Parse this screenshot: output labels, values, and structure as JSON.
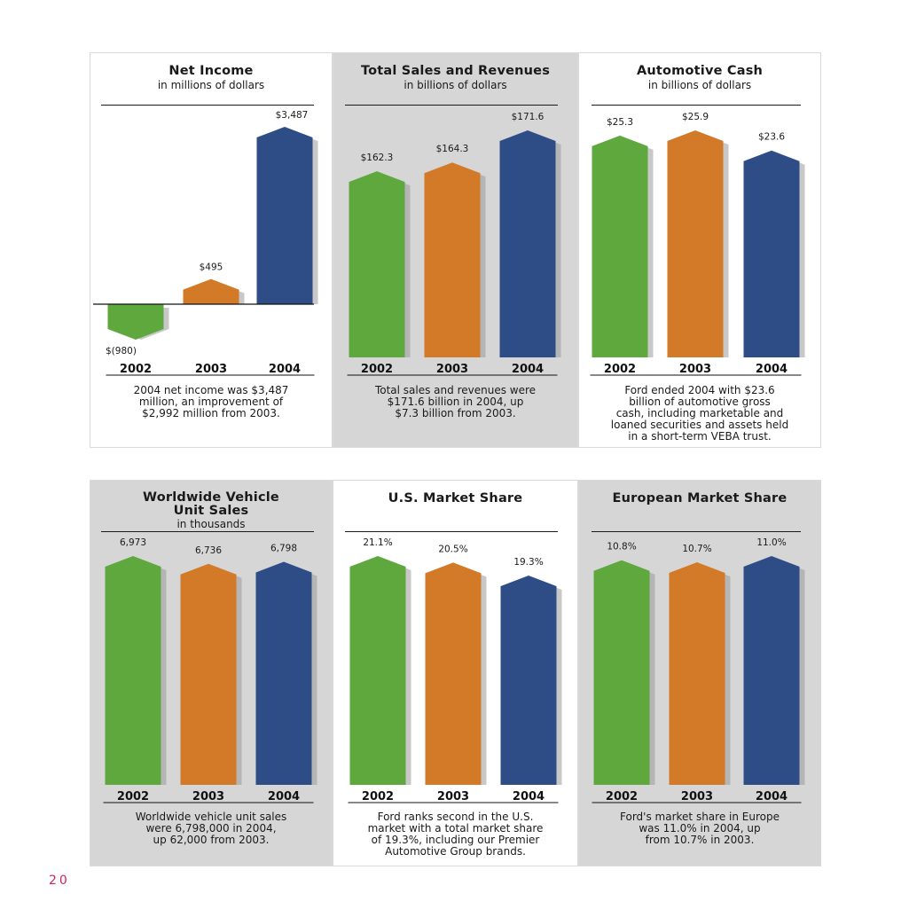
{
  "colors": {
    "green": "#5ea83e",
    "orange": "#d27a28",
    "blue": "#2e4d87",
    "shadow": "#9a9a9a"
  },
  "page_number": "20",
  "panels": [
    {
      "id": "net-income",
      "title": [
        "Net Income"
      ],
      "subtitle": "in millions of dollars",
      "desc": [
        "2004 net income was $3,487",
        "million, an improvement of",
        "$2,992 million from 2003."
      ]
    },
    {
      "id": "total-sales",
      "title": [
        "Total Sales and Revenues"
      ],
      "subtitle": "in billions of dollars",
      "desc": [
        "Total sales and revenues were",
        "$171.6 billion in 2004, up",
        "$7.3 billion from 2003."
      ]
    },
    {
      "id": "automotive-cash",
      "title": [
        "Automotive Cash"
      ],
      "subtitle": "in billions of dollars",
      "desc": [
        "Ford ended 2004 with $23.6",
        "billion of automotive gross",
        "cash, including marketable and",
        "loaned securities and assets held",
        "in a short-term VEBA trust."
      ]
    },
    {
      "id": "unit-sales",
      "title": [
        "Worldwide Vehicle",
        "Unit Sales"
      ],
      "subtitle": "in thousands",
      "desc": [
        "Worldwide vehicle unit sales",
        "were 6,798,000 in 2004,",
        "up 62,000 from 2003."
      ]
    },
    {
      "id": "us-share",
      "title": [
        "U.S. Market Share"
      ],
      "subtitle": "",
      "desc": [
        "Ford ranks second in the U.S.",
        "market with a total market share",
        "of 19.3%, including our Premier",
        "Automotive Group brands."
      ]
    },
    {
      "id": "eu-share",
      "title": [
        "European Market Share"
      ],
      "subtitle": "",
      "desc": [
        "Ford's market share in Europe",
        "was 11.0% in 2004, up",
        "from 10.7% in 2003."
      ]
    }
  ],
  "chart_data": [
    {
      "type": "bar",
      "title": "Net Income",
      "subtitle": "in millions of dollars",
      "categories": [
        "2002",
        "2003",
        "2004"
      ],
      "values": [
        -980,
        495,
        3487
      ],
      "labels": [
        "$(980)",
        "$495",
        "$3,487"
      ]
    },
    {
      "type": "bar",
      "title": "Total Sales and Revenues",
      "subtitle": "in billions of dollars",
      "categories": [
        "2002",
        "2003",
        "2004"
      ],
      "values": [
        162.3,
        164.3,
        171.6
      ],
      "labels": [
        "$162.3",
        "$164.3",
        "$171.6"
      ]
    },
    {
      "type": "bar",
      "title": "Automotive Cash",
      "subtitle": "in billions of dollars",
      "categories": [
        "2002",
        "2003",
        "2004"
      ],
      "values": [
        25.3,
        25.9,
        23.6
      ],
      "labels": [
        "$25.3",
        "$25.9",
        "$23.6"
      ]
    },
    {
      "type": "bar",
      "title": "Worldwide Vehicle Unit Sales",
      "subtitle": "in thousands",
      "categories": [
        "2002",
        "2003",
        "2004"
      ],
      "values": [
        6973,
        6736,
        6798
      ],
      "labels": [
        "6,973",
        "6,736",
        "6,798"
      ]
    },
    {
      "type": "bar",
      "title": "U.S. Market Share",
      "subtitle": "",
      "categories": [
        "2002",
        "2003",
        "2004"
      ],
      "values": [
        21.1,
        20.5,
        19.3
      ],
      "labels": [
        "21.1%",
        "20.5%",
        "19.3%"
      ]
    },
    {
      "type": "bar",
      "title": "European Market Share",
      "subtitle": "",
      "categories": [
        "2002",
        "2003",
        "2004"
      ],
      "values": [
        10.8,
        10.7,
        11.0
      ],
      "labels": [
        "10.8%",
        "10.7%",
        "11.0%"
      ]
    }
  ]
}
